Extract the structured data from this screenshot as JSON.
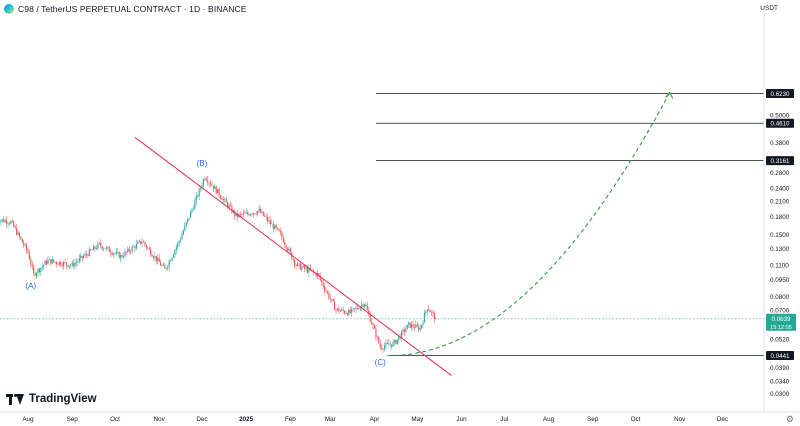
{
  "header": {
    "title": "C98 / TetherUS PERPETUAL CONTRACT · 1D · BINANCE",
    "currency": "USDT"
  },
  "branding": {
    "logo_text": "TradingView"
  },
  "icons": {
    "coin": "c98-coin-icon",
    "settings": "gear-icon",
    "logo": "tradingview-logo-icon"
  },
  "chart_data": {
    "type": "candlestick",
    "scale": "log",
    "ylim": [
      0.03,
      0.65
    ],
    "price_ticks": [
      {
        "value": 0.5,
        "label": "0.5000"
      },
      {
        "value": 0.38,
        "label": "0.3800"
      },
      {
        "value": 0.28,
        "label": "0.2800"
      },
      {
        "value": 0.24,
        "label": "0.2400"
      },
      {
        "value": 0.21,
        "label": "0.2100"
      },
      {
        "value": 0.18,
        "label": "0.1800"
      },
      {
        "value": 0.15,
        "label": "0.1500"
      },
      {
        "value": 0.13,
        "label": "0.1300"
      },
      {
        "value": 0.11,
        "label": "0.1100"
      },
      {
        "value": 0.095,
        "label": "0.0950"
      },
      {
        "value": 0.08,
        "label": "0.0800"
      },
      {
        "value": 0.07,
        "label": "0.0700"
      },
      {
        "value": 0.052,
        "label": "0.0520"
      },
      {
        "value": 0.039,
        "label": "0.0390"
      },
      {
        "value": 0.034,
        "label": "0.0340"
      },
      {
        "value": 0.03,
        "label": "0.0300"
      }
    ],
    "x_ticks": [
      {
        "date": "2024-08-01",
        "label": "Aug"
      },
      {
        "date": "2024-09-01",
        "label": "Sep"
      },
      {
        "date": "2024-10-01",
        "label": "Oct"
      },
      {
        "date": "2024-11-01",
        "label": "Nov"
      },
      {
        "date": "2024-12-01",
        "label": "Dec"
      },
      {
        "date": "2025-01-01",
        "label": "2025"
      },
      {
        "date": "2025-02-01",
        "label": "Feb"
      },
      {
        "date": "2025-03-01",
        "label": "Mar"
      },
      {
        "date": "2025-04-01",
        "label": "Apr"
      },
      {
        "date": "2025-05-01",
        "label": "May"
      },
      {
        "date": "2025-06-01",
        "label": "Jun"
      },
      {
        "date": "2025-07-01",
        "label": "Jul"
      },
      {
        "date": "2025-08-01",
        "label": "Aug"
      },
      {
        "date": "2025-09-01",
        "label": "Sep"
      },
      {
        "date": "2025-10-01",
        "label": "Oct"
      },
      {
        "date": "2025-11-01",
        "label": "Nov"
      },
      {
        "date": "2025-12-01",
        "label": "Dec"
      }
    ],
    "price_path": [
      {
        "date": "2024-07-10",
        "price": 0.175
      },
      {
        "date": "2024-07-20",
        "price": 0.17
      },
      {
        "date": "2024-08-01",
        "price": 0.125
      },
      {
        "date": "2024-08-05",
        "price": 0.1
      },
      {
        "date": "2024-08-15",
        "price": 0.115
      },
      {
        "date": "2024-09-01",
        "price": 0.11
      },
      {
        "date": "2024-09-20",
        "price": 0.135
      },
      {
        "date": "2024-10-05",
        "price": 0.12
      },
      {
        "date": "2024-10-20",
        "price": 0.14
      },
      {
        "date": "2024-11-05",
        "price": 0.105
      },
      {
        "date": "2024-11-15",
        "price": 0.14
      },
      {
        "date": "2024-11-25",
        "price": 0.2
      },
      {
        "date": "2024-12-03",
        "price": 0.27
      },
      {
        "date": "2024-12-12",
        "price": 0.23
      },
      {
        "date": "2024-12-25",
        "price": 0.18
      },
      {
        "date": "2025-01-10",
        "price": 0.19
      },
      {
        "date": "2025-01-25",
        "price": 0.15
      },
      {
        "date": "2025-02-05",
        "price": 0.11
      },
      {
        "date": "2025-02-20",
        "price": 0.1
      },
      {
        "date": "2025-03-05",
        "price": 0.07
      },
      {
        "date": "2025-03-15",
        "price": 0.068
      },
      {
        "date": "2025-03-25",
        "price": 0.075
      },
      {
        "date": "2025-04-05",
        "price": 0.048
      },
      {
        "date": "2025-04-15",
        "price": 0.05
      },
      {
        "date": "2025-04-25",
        "price": 0.06
      },
      {
        "date": "2025-05-03",
        "price": 0.058
      },
      {
        "date": "2025-05-08",
        "price": 0.072
      },
      {
        "date": "2025-05-14",
        "price": 0.0639
      }
    ],
    "current_price": {
      "value": 0.0639,
      "label": "0.0639",
      "countdown": "15:12:05"
    },
    "levels": [
      {
        "value": 0.623,
        "label": "0.6230"
      },
      {
        "value": 0.461,
        "label": "0.4610"
      },
      {
        "value": 0.3161,
        "label": "0.3161"
      },
      {
        "value": 0.0441,
        "label": "0.0441"
      }
    ],
    "trendline": {
      "start": {
        "date": "2024-10-15",
        "price": 0.4
      },
      "end": {
        "date": "2025-05-25",
        "price": 0.036
      }
    },
    "projection": {
      "start": {
        "date": "2025-04-10",
        "price": 0.0441
      },
      "end": {
        "date": "2025-10-25",
        "price": 0.63
      }
    },
    "wave_labels": [
      {
        "text": "(A)",
        "date": "2024-08-03",
        "price": 0.087
      },
      {
        "text": "(B)",
        "date": "2024-12-01",
        "price": 0.3
      },
      {
        "text": "(C)",
        "date": "2025-04-05",
        "price": 0.04
      }
    ]
  }
}
